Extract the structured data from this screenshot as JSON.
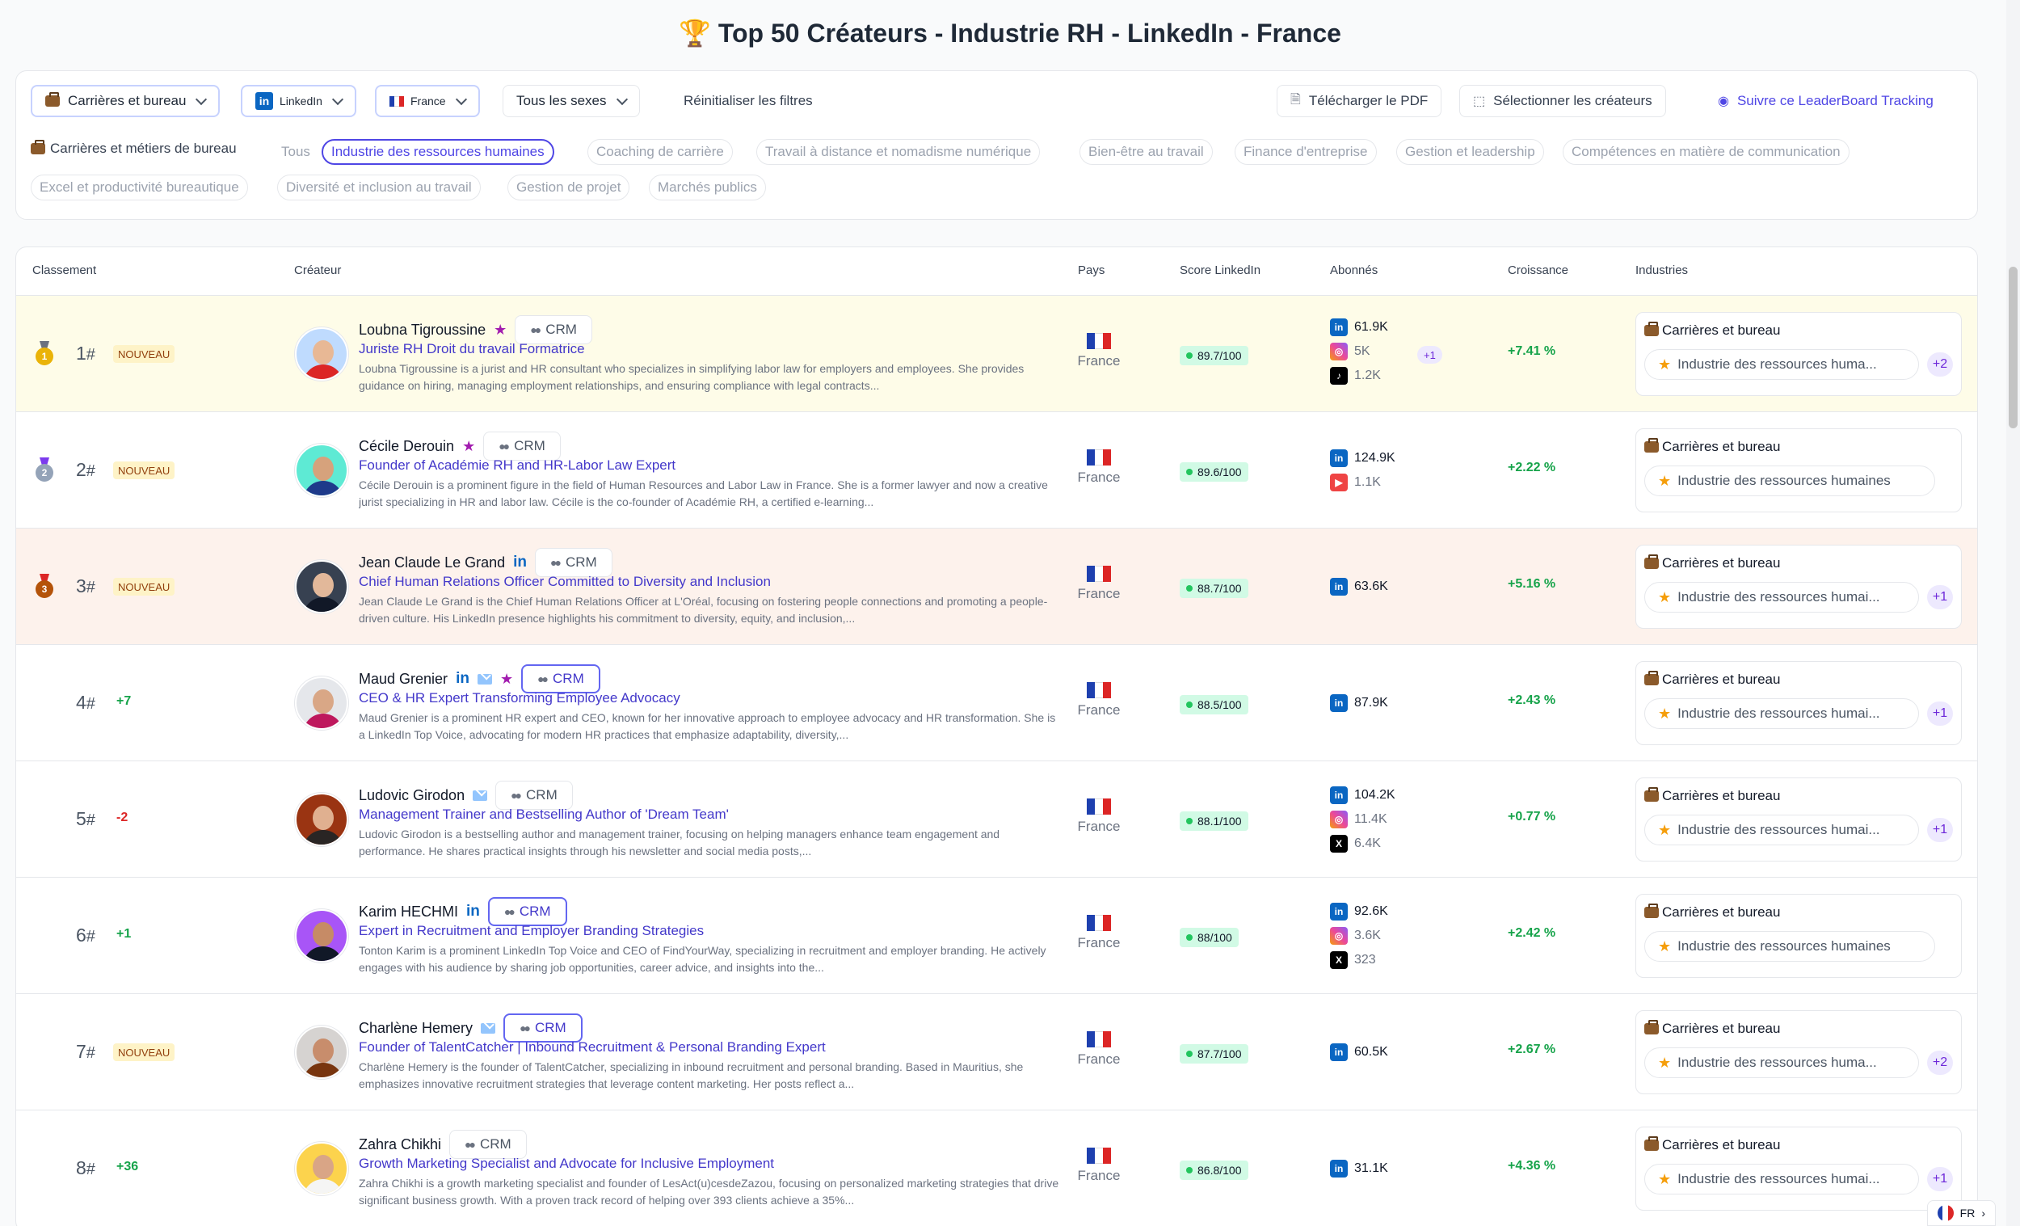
{
  "title": "🏆 Top 50 Créateurs - Industrie RH - LinkedIn - France",
  "filters": {
    "category": "Carrières et bureau",
    "platform": "LinkedIn",
    "country": "France",
    "gender": "Tous les sexes",
    "reset": "Réinitialiser les filtres",
    "download_pdf": "Télécharger le PDF",
    "select_creators": "Sélectionner les créateurs",
    "track": "Suivre ce LeaderBoard Tracking"
  },
  "subcategories": {
    "label": "Carrières et métiers de bureau",
    "chips": [
      "Tous",
      "Industrie des ressources humaines",
      "Coaching de carrière",
      "Travail à distance et nomadisme numérique",
      "Bien-être au travail",
      "Finance d'entreprise",
      "Gestion et leadership",
      "Compétences en matière de communication",
      "Excel et productivité bureautique",
      "Diversité et inclusion au travail",
      "Gestion de projet",
      "Marchés publics"
    ]
  },
  "table": {
    "headers": {
      "rank": "Classement",
      "creator": "Créateur",
      "country": "Pays",
      "score": "Score LinkedIn",
      "followers": "Abonnés",
      "growth": "Croissance",
      "industries": "Industries"
    },
    "crm_label": "CRM",
    "new_label": "NOUVEAU",
    "industry_main": "Carrières et bureau",
    "rows": [
      {
        "rank": "1",
        "status": "NOUVEAU",
        "name": "Loubna Tigroussine",
        "headline": "Juriste RH Droit du travail Formatrice",
        "bio": "Loubna Tigroussine is a jurist and HR consultant who specializes in simplifying labor law for employers and employees. She provides guidance on hiring, managing employment relationships, and ensuring compliance with legal contracts...",
        "country": "France",
        "score": "89.7/100",
        "followers": [
          "61.9K",
          "5K",
          "1.2K"
        ],
        "more_platforms": "+1",
        "growth": "+7.41 %",
        "industry": "Industrie des ressources huma...",
        "industry_more": "+2"
      },
      {
        "rank": "2",
        "status": "NOUVEAU",
        "name": "Cécile Derouin",
        "headline": "Founder of Académie RH and HR-Labor Law Expert",
        "bio": "Cécile Derouin is a prominent figure in the field of Human Resources and Labor Law in France. She is a former lawyer and now a creative jurist specializing in HR and labor law. Cécile is the co-founder of Académie RH, a certified e-learning...",
        "country": "France",
        "score": "89.6/100",
        "followers": [
          "124.9K",
          "1.1K"
        ],
        "growth": "+2.22 %",
        "industry": "Industrie des ressources humaines"
      },
      {
        "rank": "3",
        "status": "NOUVEAU",
        "name": "Jean Claude Le Grand",
        "headline": "Chief Human Relations Officer Committed to Diversity and Inclusion",
        "bio": "Jean Claude Le Grand is the Chief Human Relations Officer at L'Oréal, focusing on fostering people connections and promoting a people-driven culture. His LinkedIn presence highlights his commitment to diversity, equity, and inclusion,...",
        "country": "France",
        "score": "88.7/100",
        "followers": [
          "63.6K"
        ],
        "growth": "+5.16 %",
        "industry": "Industrie des ressources humai...",
        "industry_more": "+1"
      },
      {
        "rank": "4",
        "status": "+7",
        "name": "Maud Grenier",
        "headline": "CEO & HR Expert Transforming Employee Advocacy",
        "bio": "Maud Grenier is a prominent HR expert and CEO, known for her innovative approach to employee advocacy and HR transformation. She is a LinkedIn Top Voice, advocating for modern HR practices that emphasize adaptability, diversity,...",
        "country": "France",
        "score": "88.5/100",
        "followers": [
          "87.9K"
        ],
        "growth": "+2.43 %",
        "industry": "Industrie des ressources humai...",
        "industry_more": "+1"
      },
      {
        "rank": "5",
        "status": "-2",
        "name": "Ludovic Girodon",
        "headline": "Management Trainer and Bestselling Author of 'Dream Team'",
        "bio": "Ludovic Girodon is a bestselling author and management trainer, focusing on helping managers enhance team engagement and performance. He shares practical insights through his newsletter and social media posts,...",
        "country": "France",
        "score": "88.1/100",
        "followers": [
          "104.2K",
          "11.4K",
          "6.4K"
        ],
        "growth": "+0.77 %",
        "industry": "Industrie des ressources humai...",
        "industry_more": "+1"
      },
      {
        "rank": "6",
        "status": "+1",
        "name": "Karim HECHMI",
        "headline": "Expert in Recruitment and Employer Branding Strategies",
        "bio": "Tonton Karim is a prominent LinkedIn Top Voice and CEO of FindYourWay, specializing in recruitment and employer branding. He actively engages with his audience by sharing job opportunities, career advice, and insights into the...",
        "country": "France",
        "score": "88/100",
        "followers": [
          "92.6K",
          "3.6K",
          "323"
        ],
        "growth": "+2.42 %",
        "industry": "Industrie des ressources humaines"
      },
      {
        "rank": "7",
        "status": "NOUVEAU",
        "name": "Charlène Hemery",
        "headline": "Founder of TalentCatcher | Inbound Recruitment & Personal Branding Expert",
        "bio": "Charlène Hemery is the founder of TalentCatcher, specializing in inbound recruitment and personal branding. Based in Mauritius, she emphasizes innovative recruitment strategies that leverage content marketing. Her posts reflect a...",
        "country": "France",
        "score": "87.7/100",
        "followers": [
          "60.5K"
        ],
        "growth": "+2.67 %",
        "industry": "Industrie des ressources huma...",
        "industry_more": "+2"
      },
      {
        "rank": "8",
        "status": "+36",
        "name": "Zahra Chikhi",
        "headline": "Growth Marketing Specialist and Advocate for Inclusive Employment",
        "bio": "Zahra Chikhi is a growth marketing specialist and founder of LesAct(u)cesdeZazou, focusing on personalized marketing strategies that drive significant business growth. With a proven track record of helping over 393 clients achieve a 35%...",
        "country": "France",
        "score": "86.8/100",
        "followers": [
          "31.1K"
        ],
        "growth": "+4.36 %",
        "industry": "Industrie des ressources humai...",
        "industry_more": "+1"
      }
    ]
  },
  "lang": "FR",
  "colors": {
    "accent": "#4f46e5",
    "growth": "#16a34a",
    "gold_row": "#fefce8",
    "bronze_row": "#fdf2ec"
  }
}
